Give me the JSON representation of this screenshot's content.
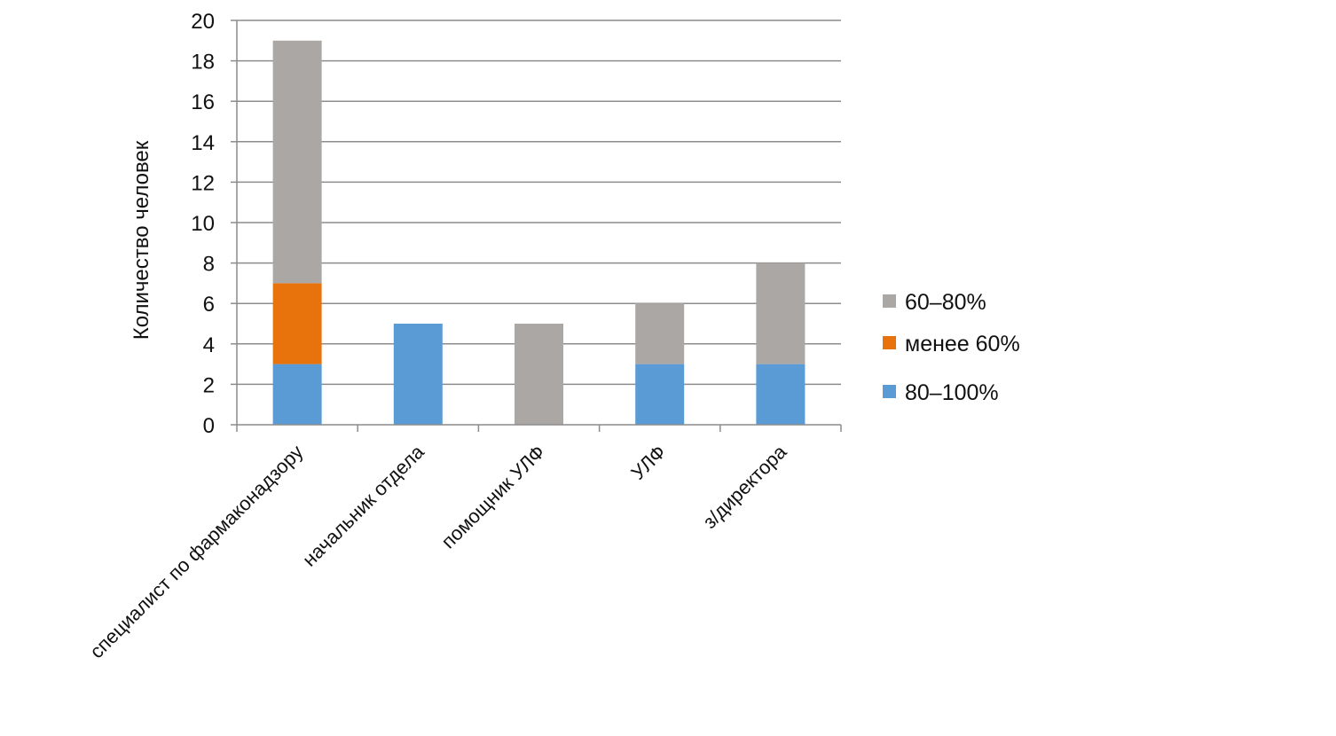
{
  "chart_data": {
    "type": "bar",
    "stacked": true,
    "title": "",
    "xlabel": "",
    "ylabel": "Количество человек",
    "ylim": [
      0,
      20
    ],
    "yticks": [
      0,
      2,
      4,
      6,
      8,
      10,
      12,
      14,
      16,
      18,
      20
    ],
    "grid": true,
    "legend_position": "right",
    "categories": [
      "специалист по фармаконадзору",
      "начальник отдела",
      "помощник УЛФ",
      "УЛФ",
      "з/директора"
    ],
    "series": [
      {
        "name": "80–100%",
        "color": "#5b9bd5",
        "values": [
          3,
          5,
          0,
          3,
          3
        ]
      },
      {
        "name": "менее 60%",
        "color": "#e8730c",
        "values": [
          4,
          0,
          0,
          0,
          0
        ]
      },
      {
        "name": "60–80%",
        "color": "#aba7a5",
        "values": [
          12,
          0,
          5,
          3,
          5
        ]
      }
    ],
    "legend_order": [
      "60–80%",
      "менее 60%",
      "80–100%"
    ],
    "colors": {
      "gridline": "#8c8c8c",
      "axis": "#8c8c8c",
      "text": "#111111"
    }
  }
}
